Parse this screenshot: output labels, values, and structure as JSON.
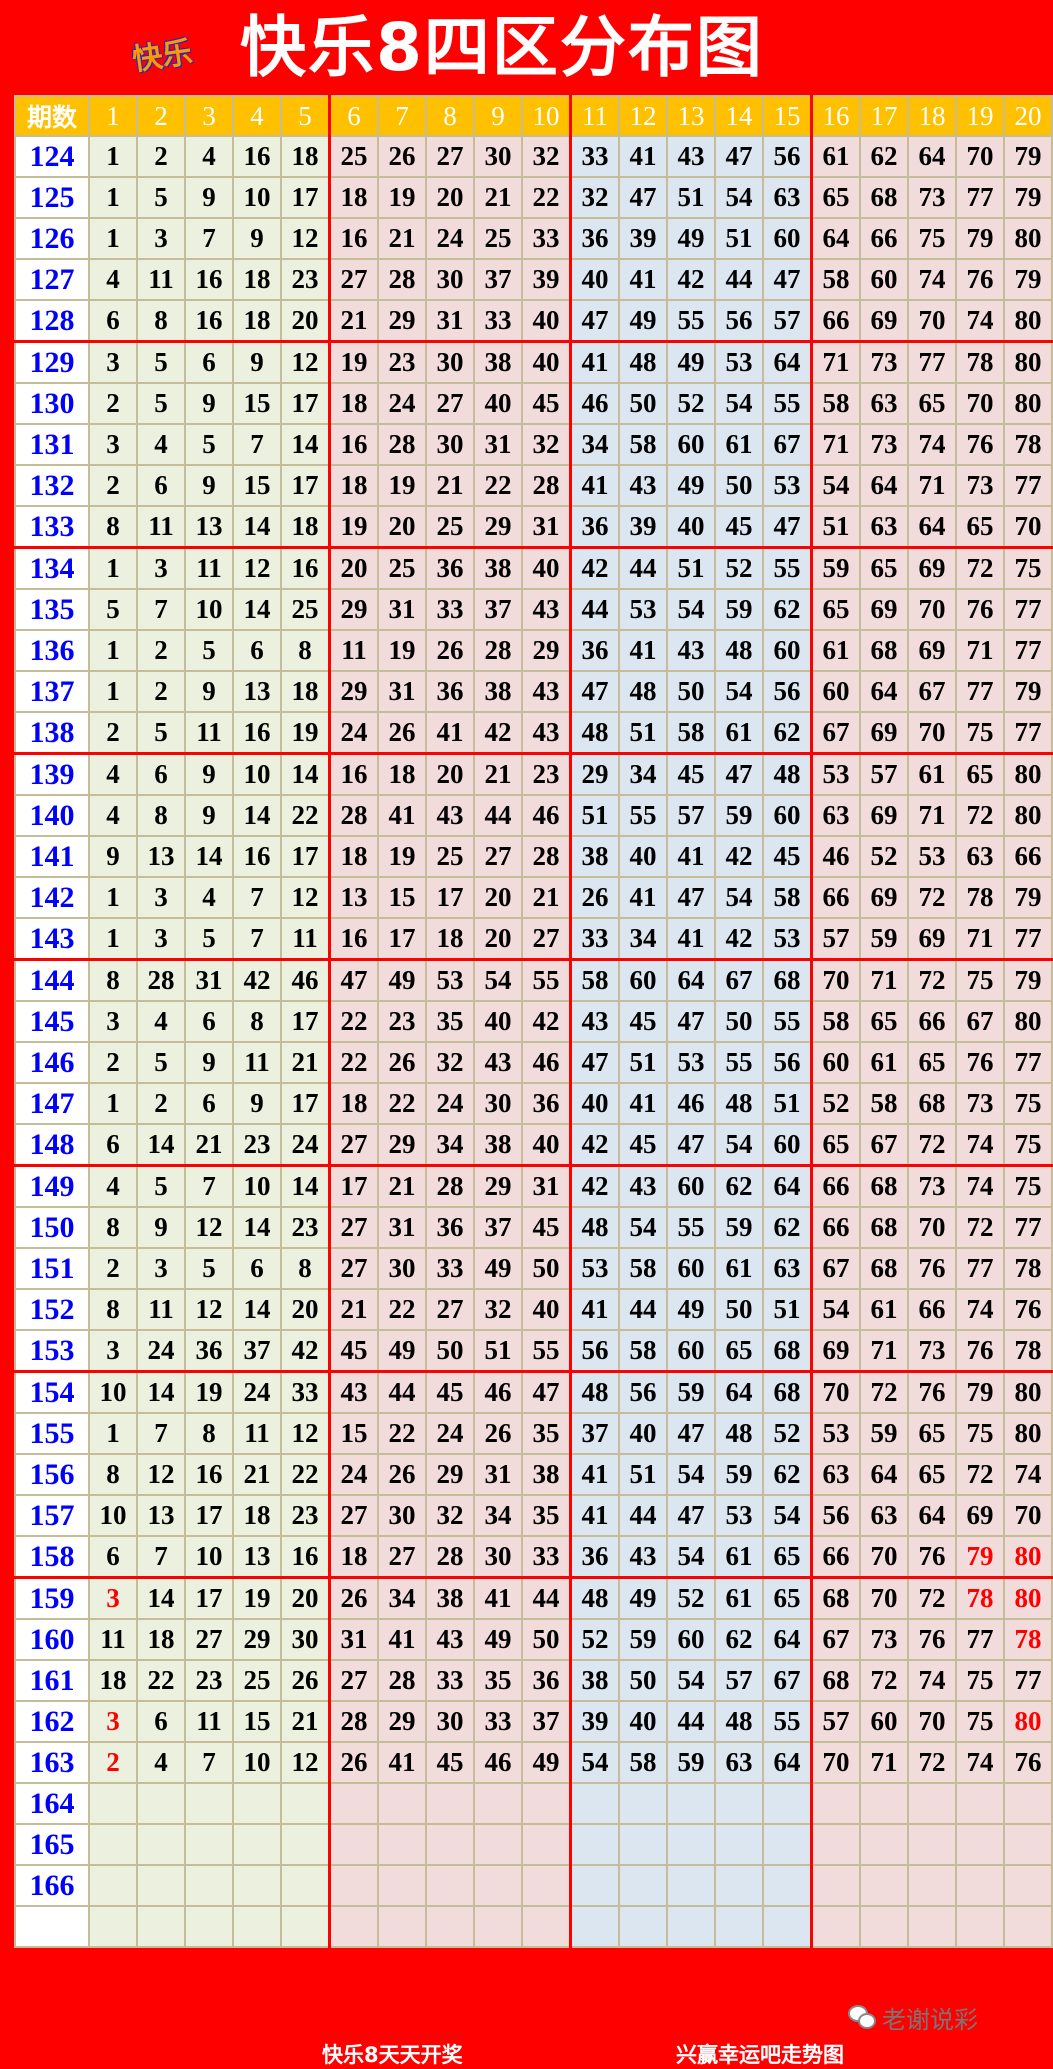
{
  "header": {
    "title": "快乐8四区分布图",
    "logo_text": "快乐"
  },
  "colors": {
    "background": "#ff0000",
    "header_row": "#ffc000",
    "period_text": "#0000ff",
    "zone1": "#ebf1de",
    "zone2": "#f2dcdb",
    "zone3": "#dce6f1",
    "zone4": "#f2dcdb",
    "highlight": "#ff0000"
  },
  "table": {
    "period_header": "期数",
    "columns": [
      "1",
      "2",
      "3",
      "4",
      "5",
      "6",
      "7",
      "8",
      "9",
      "10",
      "11",
      "12",
      "13",
      "14",
      "15",
      "16",
      "17",
      "18",
      "19",
      "20"
    ]
  },
  "rows": [
    {
      "period": "124",
      "nums": [
        1,
        2,
        4,
        16,
        18,
        25,
        26,
        27,
        30,
        32,
        33,
        41,
        43,
        47,
        56,
        61,
        62,
        64,
        70,
        79
      ],
      "red": []
    },
    {
      "period": "125",
      "nums": [
        1,
        5,
        9,
        10,
        17,
        18,
        19,
        20,
        21,
        22,
        32,
        47,
        51,
        54,
        63,
        65,
        68,
        73,
        77,
        79
      ],
      "red": []
    },
    {
      "period": "126",
      "nums": [
        1,
        3,
        7,
        9,
        12,
        16,
        21,
        24,
        25,
        33,
        36,
        39,
        49,
        51,
        60,
        64,
        66,
        75,
        79,
        80
      ],
      "red": []
    },
    {
      "period": "127",
      "nums": [
        4,
        11,
        16,
        18,
        23,
        27,
        28,
        30,
        37,
        39,
        40,
        41,
        42,
        44,
        47,
        58,
        60,
        74,
        76,
        79
      ],
      "red": []
    },
    {
      "period": "128",
      "nums": [
        6,
        8,
        16,
        18,
        20,
        21,
        29,
        31,
        33,
        40,
        47,
        49,
        55,
        56,
        57,
        66,
        69,
        70,
        74,
        80
      ],
      "red": []
    },
    {
      "period": "129",
      "nums": [
        3,
        5,
        6,
        9,
        12,
        19,
        23,
        30,
        38,
        40,
        41,
        48,
        49,
        53,
        64,
        71,
        73,
        77,
        78,
        80
      ],
      "red": []
    },
    {
      "period": "130",
      "nums": [
        2,
        5,
        9,
        15,
        17,
        18,
        24,
        27,
        40,
        45,
        46,
        50,
        52,
        54,
        55,
        58,
        63,
        65,
        70,
        80
      ],
      "red": []
    },
    {
      "period": "131",
      "nums": [
        3,
        4,
        5,
        7,
        14,
        16,
        28,
        30,
        31,
        32,
        34,
        58,
        60,
        61,
        67,
        71,
        73,
        74,
        76,
        78
      ],
      "red": []
    },
    {
      "period": "132",
      "nums": [
        2,
        6,
        9,
        15,
        17,
        18,
        19,
        21,
        22,
        28,
        41,
        43,
        49,
        50,
        53,
        54,
        64,
        71,
        73,
        77
      ],
      "red": []
    },
    {
      "period": "133",
      "nums": [
        8,
        11,
        13,
        14,
        18,
        19,
        20,
        25,
        29,
        31,
        36,
        39,
        40,
        45,
        47,
        51,
        63,
        64,
        65,
        70
      ],
      "red": []
    },
    {
      "period": "134",
      "nums": [
        1,
        3,
        11,
        12,
        16,
        20,
        25,
        36,
        38,
        40,
        42,
        44,
        51,
        52,
        55,
        59,
        65,
        69,
        72,
        75
      ],
      "red": []
    },
    {
      "period": "135",
      "nums": [
        5,
        7,
        10,
        14,
        25,
        29,
        31,
        33,
        37,
        43,
        44,
        53,
        54,
        59,
        62,
        65,
        69,
        70,
        76,
        77
      ],
      "red": []
    },
    {
      "period": "136",
      "nums": [
        1,
        2,
        5,
        6,
        8,
        11,
        19,
        26,
        28,
        29,
        36,
        41,
        43,
        48,
        60,
        61,
        68,
        69,
        71,
        77
      ],
      "red": []
    },
    {
      "period": "137",
      "nums": [
        1,
        2,
        9,
        13,
        18,
        29,
        31,
        36,
        38,
        43,
        47,
        48,
        50,
        54,
        56,
        60,
        64,
        67,
        77,
        79
      ],
      "red": []
    },
    {
      "period": "138",
      "nums": [
        2,
        5,
        11,
        16,
        19,
        24,
        26,
        41,
        42,
        43,
        48,
        51,
        58,
        61,
        62,
        67,
        69,
        70,
        75,
        77
      ],
      "red": []
    },
    {
      "period": "139",
      "nums": [
        4,
        6,
        9,
        10,
        14,
        16,
        18,
        20,
        21,
        23,
        29,
        34,
        45,
        47,
        48,
        53,
        57,
        61,
        65,
        80
      ],
      "red": []
    },
    {
      "period": "140",
      "nums": [
        4,
        8,
        9,
        14,
        22,
        28,
        41,
        43,
        44,
        46,
        51,
        55,
        57,
        59,
        60,
        63,
        69,
        71,
        72,
        80
      ],
      "red": []
    },
    {
      "period": "141",
      "nums": [
        9,
        13,
        14,
        16,
        17,
        18,
        19,
        25,
        27,
        28,
        38,
        40,
        41,
        42,
        45,
        46,
        52,
        53,
        63,
        66
      ],
      "red": []
    },
    {
      "period": "142",
      "nums": [
        1,
        3,
        4,
        7,
        12,
        13,
        15,
        17,
        20,
        21,
        26,
        41,
        47,
        54,
        58,
        66,
        69,
        72,
        78,
        79
      ],
      "red": []
    },
    {
      "period": "143",
      "nums": [
        1,
        3,
        5,
        7,
        11,
        16,
        17,
        18,
        20,
        27,
        33,
        34,
        41,
        42,
        53,
        57,
        59,
        69,
        71,
        77
      ],
      "red": []
    },
    {
      "period": "144",
      "nums": [
        8,
        28,
        31,
        42,
        46,
        47,
        49,
        53,
        54,
        55,
        58,
        60,
        64,
        67,
        68,
        70,
        71,
        72,
        75,
        79
      ],
      "red": []
    },
    {
      "period": "145",
      "nums": [
        3,
        4,
        6,
        8,
        17,
        22,
        23,
        35,
        40,
        42,
        43,
        45,
        47,
        50,
        55,
        58,
        65,
        66,
        67,
        80
      ],
      "red": []
    },
    {
      "period": "146",
      "nums": [
        2,
        5,
        9,
        11,
        21,
        22,
        26,
        32,
        43,
        46,
        47,
        51,
        53,
        55,
        56,
        60,
        61,
        65,
        76,
        77
      ],
      "red": []
    },
    {
      "period": "147",
      "nums": [
        1,
        2,
        6,
        9,
        17,
        18,
        22,
        24,
        30,
        36,
        40,
        41,
        46,
        48,
        51,
        52,
        58,
        68,
        73,
        75
      ],
      "red": []
    },
    {
      "period": "148",
      "nums": [
        6,
        14,
        21,
        23,
        24,
        27,
        29,
        34,
        38,
        40,
        42,
        45,
        47,
        54,
        60,
        65,
        67,
        72,
        74,
        75
      ],
      "red": []
    },
    {
      "period": "149",
      "nums": [
        4,
        5,
        7,
        10,
        14,
        17,
        21,
        28,
        29,
        31,
        42,
        43,
        60,
        62,
        64,
        66,
        68,
        73,
        74,
        75
      ],
      "red": []
    },
    {
      "period": "150",
      "nums": [
        8,
        9,
        12,
        14,
        23,
        27,
        31,
        36,
        37,
        45,
        48,
        54,
        55,
        59,
        62,
        66,
        68,
        70,
        72,
        77
      ],
      "red": []
    },
    {
      "period": "151",
      "nums": [
        2,
        3,
        5,
        6,
        8,
        27,
        30,
        33,
        49,
        50,
        53,
        58,
        60,
        61,
        63,
        67,
        68,
        76,
        77,
        78
      ],
      "red": []
    },
    {
      "period": "152",
      "nums": [
        8,
        11,
        12,
        14,
        20,
        21,
        22,
        27,
        32,
        40,
        41,
        44,
        49,
        50,
        51,
        54,
        61,
        66,
        74,
        76
      ],
      "red": []
    },
    {
      "period": "153",
      "nums": [
        3,
        24,
        36,
        37,
        42,
        45,
        49,
        50,
        51,
        55,
        56,
        58,
        60,
        65,
        68,
        69,
        71,
        73,
        76,
        78
      ],
      "red": []
    },
    {
      "period": "154",
      "nums": [
        10,
        14,
        19,
        24,
        33,
        43,
        44,
        45,
        46,
        47,
        48,
        56,
        59,
        64,
        68,
        70,
        72,
        76,
        79,
        80
      ],
      "red": []
    },
    {
      "period": "155",
      "nums": [
        1,
        7,
        8,
        11,
        12,
        15,
        22,
        24,
        26,
        35,
        37,
        40,
        47,
        48,
        52,
        53,
        59,
        65,
        75,
        80
      ],
      "red": []
    },
    {
      "period": "156",
      "nums": [
        8,
        12,
        16,
        21,
        22,
        24,
        26,
        29,
        31,
        38,
        41,
        51,
        54,
        59,
        62,
        63,
        64,
        65,
        72,
        74
      ],
      "red": []
    },
    {
      "period": "157",
      "nums": [
        10,
        13,
        17,
        18,
        23,
        27,
        30,
        32,
        34,
        35,
        41,
        44,
        47,
        53,
        54,
        56,
        63,
        64,
        69,
        70
      ],
      "red": []
    },
    {
      "period": "158",
      "nums": [
        6,
        7,
        10,
        13,
        16,
        18,
        27,
        28,
        30,
        33,
        36,
        43,
        54,
        61,
        65,
        66,
        70,
        76,
        79,
        80
      ],
      "red": [
        18,
        19
      ]
    },
    {
      "period": "159",
      "nums": [
        3,
        14,
        17,
        19,
        20,
        26,
        34,
        38,
        41,
        44,
        48,
        49,
        52,
        61,
        65,
        68,
        70,
        72,
        78,
        80
      ],
      "red": [
        0,
        18,
        19
      ]
    },
    {
      "period": "160",
      "nums": [
        11,
        18,
        27,
        29,
        30,
        31,
        41,
        43,
        49,
        50,
        52,
        59,
        60,
        62,
        64,
        67,
        73,
        76,
        77,
        78
      ],
      "red": [
        19
      ]
    },
    {
      "period": "161",
      "nums": [
        18,
        22,
        23,
        25,
        26,
        27,
        28,
        33,
        35,
        36,
        38,
        50,
        54,
        57,
        67,
        68,
        72,
        74,
        75,
        77
      ],
      "red": []
    },
    {
      "period": "162",
      "nums": [
        3,
        6,
        11,
        15,
        21,
        28,
        29,
        30,
        33,
        37,
        39,
        40,
        44,
        48,
        55,
        57,
        60,
        70,
        75,
        80
      ],
      "red": [
        0,
        19
      ]
    },
    {
      "period": "163",
      "nums": [
        2,
        4,
        7,
        10,
        12,
        26,
        41,
        45,
        46,
        49,
        54,
        58,
        59,
        63,
        64,
        70,
        71,
        72,
        74,
        76
      ],
      "red": [
        0
      ]
    },
    {
      "period": "164",
      "nums": [],
      "red": []
    },
    {
      "period": "165",
      "nums": [],
      "red": []
    },
    {
      "period": "166",
      "nums": [],
      "red": []
    },
    {
      "period": "",
      "nums": [],
      "red": []
    }
  ],
  "footer": {
    "left_text": "快乐8天天开奖",
    "right_text": "兴赢幸运吧走势图"
  },
  "watermark": {
    "text": "老谢说彩",
    "icon": "wechat-icon"
  }
}
